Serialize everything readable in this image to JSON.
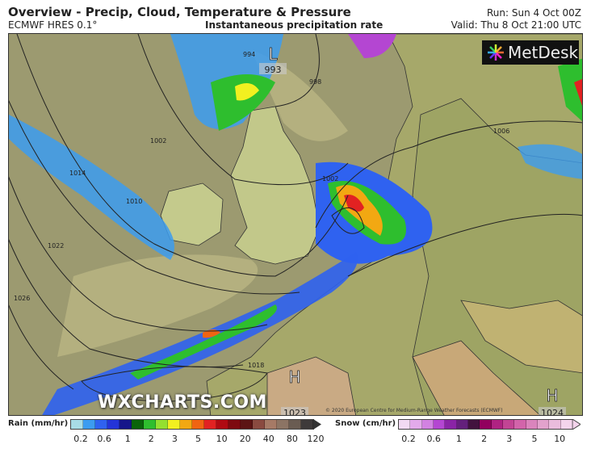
{
  "header": {
    "title": "Overview - Precip, Cloud, Temperature & Pressure",
    "model": "ECMWF HRES 0.1°",
    "subtitle": "Instantaneous precipitation rate",
    "run": "Run: Sun 4 Oct 00Z",
    "valid": "Valid: Thu 8 Oct 21:00 UTC"
  },
  "map": {
    "logo": "MetDesk",
    "watermark": "WXCHARTS.COM",
    "copyright": "© 2020 European Centre for Medium-Range Weather Forecasts (ECMWF)",
    "pressure_centres": [
      {
        "type": "L",
        "value": "993"
      },
      {
        "type": "H",
        "value": "1023"
      },
      {
        "type": "H",
        "value": "1024"
      }
    ],
    "isobar_labels": [
      "994",
      "998",
      "1002",
      "1002",
      "1006",
      "1010",
      "1014",
      "1018",
      "1022",
      "1026"
    ]
  },
  "legend": {
    "rain": {
      "label": "Rain (mm/hr)",
      "ticks": [
        "0.2",
        "0.6",
        "1",
        "2",
        "3",
        "5",
        "10",
        "20",
        "40",
        "80",
        "120"
      ],
      "colors": [
        "#a8dce6",
        "#3c9cf0",
        "#2f62f0",
        "#2434d8",
        "#16168a",
        "#0a640a",
        "#2ebe2e",
        "#94e030",
        "#f2f020",
        "#f2a812",
        "#f06412",
        "#e22222",
        "#b00a12",
        "#7e0a10",
        "#5c1414",
        "#8a4a40",
        "#a67a66",
        "#8c7464",
        "#6a5c52",
        "#3e3a3a"
      ]
    },
    "snow": {
      "label": "Snow (cm/hr)",
      "ticks": [
        "0.2",
        "0.6",
        "1",
        "2",
        "3",
        "5",
        "10"
      ],
      "colors": [
        "#f2daf2",
        "#e2aaea",
        "#d282e2",
        "#b446d2",
        "#8a24a6",
        "#64207c",
        "#42123e",
        "#92005e",
        "#b02282",
        "#c24494",
        "#d264aa",
        "#da84bc",
        "#e2a2cc",
        "#eabcdc",
        "#f4d4ec"
      ]
    }
  }
}
